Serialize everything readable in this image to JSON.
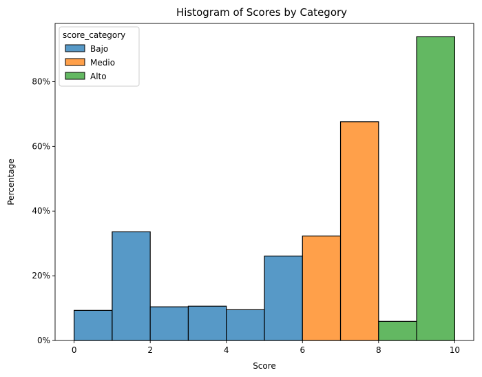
{
  "chart_data": {
    "type": "bar",
    "title": "Histogram of Scores by Category",
    "xlabel": "Score",
    "ylabel": "Percentage",
    "xlim": [
      -0.5,
      10.5
    ],
    "ylim": [
      0,
      98
    ],
    "xticks": [
      0,
      2,
      4,
      6,
      8,
      10
    ],
    "yticks": [
      0,
      20,
      40,
      60,
      80
    ],
    "ytick_format": "percent",
    "grid": false,
    "legend": {
      "title": "score_category",
      "placement": "top-left"
    },
    "series": [
      {
        "name": "Bajo",
        "color": "#5799c7",
        "bins": [
          {
            "x0": 0,
            "x1": 1,
            "value": 9.3
          },
          {
            "x0": 1,
            "x1": 2,
            "value": 33.6
          },
          {
            "x0": 2,
            "x1": 3,
            "value": 10.4
          },
          {
            "x0": 3,
            "x1": 4,
            "value": 10.6
          },
          {
            "x0": 4,
            "x1": 5,
            "value": 9.5
          },
          {
            "x0": 5,
            "x1": 6,
            "value": 26.1
          }
        ]
      },
      {
        "name": "Medio",
        "color": "#ffa04a",
        "bins": [
          {
            "x0": 6,
            "x1": 7,
            "value": 32.3
          },
          {
            "x0": 7,
            "x1": 8,
            "value": 67.6
          }
        ]
      },
      {
        "name": "Alto",
        "color": "#63b862",
        "bins": [
          {
            "x0": 8,
            "x1": 9,
            "value": 5.9
          },
          {
            "x0": 9,
            "x1": 10,
            "value": 93.9
          }
        ]
      }
    ]
  }
}
